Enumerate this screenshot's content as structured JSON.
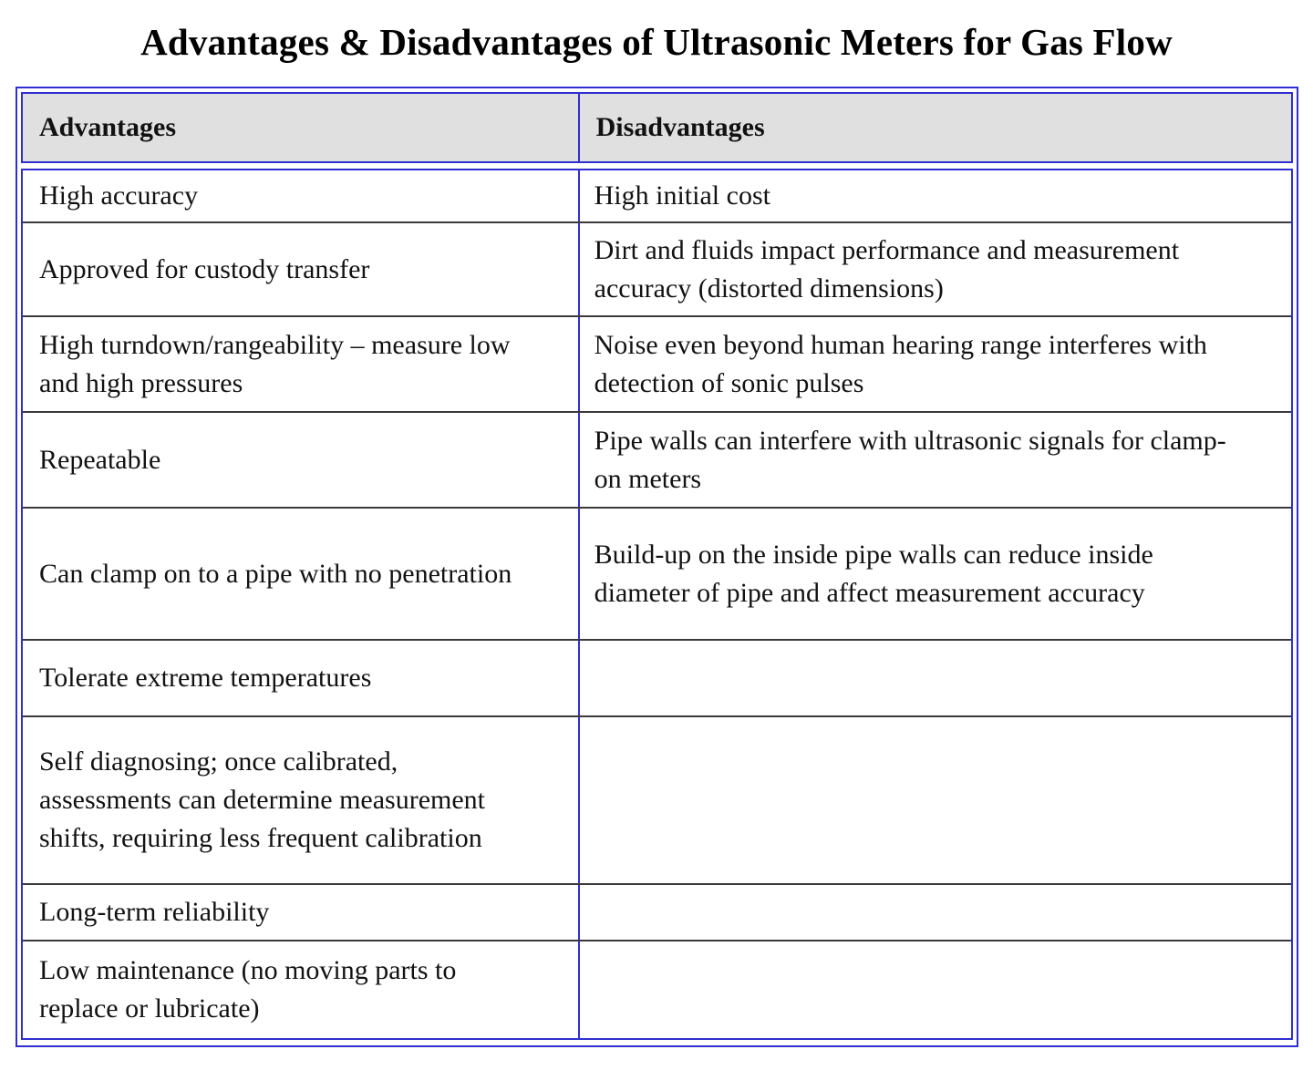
{
  "title": "Advantages & Disadvantages of Ultrasonic Meters for Gas Flow",
  "table": {
    "headers": [
      "Advantages",
      "Disadvantages"
    ],
    "rows": [
      {
        "advantage": "High accuracy",
        "disadvantage": "High initial cost"
      },
      {
        "advantage": "Approved for custody transfer",
        "disadvantage": "Dirt and fluids impact performance and measurement accuracy (distorted dimensions)"
      },
      {
        "advantage": "High turndown/rangeability – measure low and high pressures",
        "disadvantage": "Noise even beyond human hearing range interferes with detection of sonic pulses"
      },
      {
        "advantage": "Repeatable",
        "disadvantage": "Pipe walls can interfere with ultrasonic signals for clamp-on meters"
      },
      {
        "advantage": "Can clamp on to a pipe with no penetration",
        "disadvantage": "Build-up on the inside pipe walls can reduce inside diameter of pipe and affect measurement accuracy"
      },
      {
        "advantage": "Tolerate extreme temperatures",
        "disadvantage": ""
      },
      {
        "advantage": "Self diagnosing; once calibrated, assessments can determine measurement shifts, requiring less frequent calibration",
        "disadvantage": ""
      },
      {
        "advantage": "Long-term reliability",
        "disadvantage": ""
      },
      {
        "advantage": "Low maintenance (no moving parts to replace or lubricate)",
        "disadvantage": ""
      }
    ]
  },
  "colors": {
    "border_blue": "#2f2fd0",
    "row_line": "#3a3a3a",
    "header_bg": "#e0e0e0",
    "text": "#121212"
  }
}
